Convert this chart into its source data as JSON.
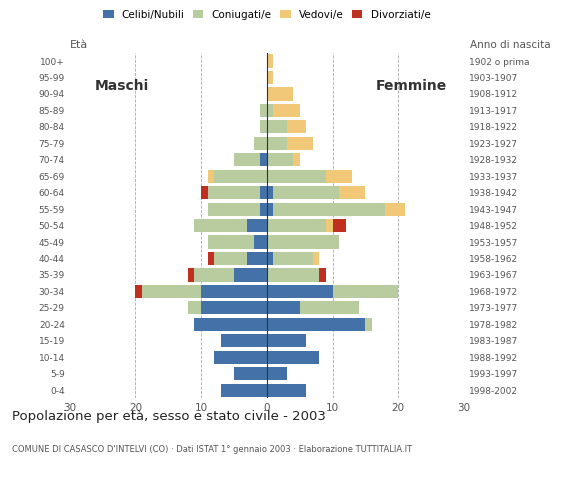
{
  "age_groups": [
    "0-4",
    "5-9",
    "10-14",
    "15-19",
    "20-24",
    "25-29",
    "30-34",
    "35-39",
    "40-44",
    "45-49",
    "50-54",
    "55-59",
    "60-64",
    "65-69",
    "70-74",
    "75-79",
    "80-84",
    "85-89",
    "90-94",
    "95-99",
    "100+"
  ],
  "birth_years": [
    "1998-2002",
    "1993-1997",
    "1988-1992",
    "1983-1987",
    "1978-1982",
    "1973-1977",
    "1968-1972",
    "1963-1967",
    "1958-1962",
    "1953-1957",
    "1948-1952",
    "1943-1947",
    "1938-1942",
    "1933-1937",
    "1928-1932",
    "1923-1927",
    "1918-1922",
    "1913-1917",
    "1908-1912",
    "1903-1907",
    "1902 o prima"
  ],
  "male": {
    "celibi": [
      7,
      5,
      8,
      7,
      11,
      10,
      10,
      5,
      3,
      2,
      3,
      1,
      1,
      0,
      1,
      0,
      0,
      0,
      0,
      0,
      0
    ],
    "coniugati": [
      0,
      0,
      0,
      0,
      0,
      2,
      9,
      6,
      5,
      7,
      8,
      8,
      8,
      8,
      4,
      2,
      1,
      1,
      0,
      0,
      0
    ],
    "vedovi": [
      0,
      0,
      0,
      0,
      0,
      0,
      0,
      0,
      0,
      0,
      0,
      0,
      0,
      1,
      0,
      0,
      0,
      0,
      0,
      0,
      0
    ],
    "divorziati": [
      0,
      0,
      0,
      0,
      0,
      0,
      1,
      1,
      1,
      0,
      0,
      0,
      1,
      0,
      0,
      0,
      0,
      0,
      0,
      0,
      0
    ]
  },
  "female": {
    "nubili": [
      6,
      3,
      8,
      6,
      15,
      5,
      10,
      0,
      1,
      0,
      0,
      1,
      1,
      0,
      0,
      0,
      0,
      0,
      0,
      0,
      0
    ],
    "coniugate": [
      0,
      0,
      0,
      0,
      1,
      9,
      10,
      8,
      6,
      11,
      9,
      17,
      10,
      9,
      4,
      3,
      3,
      1,
      0,
      0,
      0
    ],
    "vedove": [
      0,
      0,
      0,
      0,
      0,
      0,
      0,
      0,
      1,
      0,
      1,
      3,
      4,
      4,
      1,
      4,
      3,
      4,
      4,
      1,
      1
    ],
    "divorziate": [
      0,
      0,
      0,
      0,
      0,
      0,
      0,
      1,
      0,
      0,
      2,
      0,
      0,
      0,
      0,
      0,
      0,
      0,
      0,
      0,
      0
    ]
  },
  "colors": {
    "celibi": "#4472a8",
    "coniugati": "#b8cca0",
    "vedovi": "#f0c878",
    "divorziati": "#c03020"
  },
  "legend_labels": [
    "Celibi/Nubili",
    "Coniugati/e",
    "Vedovi/e",
    "Divorziati/e"
  ],
  "legend_colors": [
    "#4472a8",
    "#b8cca0",
    "#f0c878",
    "#c03020"
  ],
  "title": "Popolazione per età, sesso e stato civile - 2003",
  "subtitle": "COMUNE DI CASASCO D'INTELVI (CO) · Dati ISTAT 1° gennaio 2003 · Elaborazione TUTTITALIA.IT",
  "label_eta": "Età",
  "label_anno": "Anno di nascita",
  "label_maschi": "Maschi",
  "label_femmine": "Femmine",
  "xlim": 30,
  "background_color": "#ffffff",
  "grid_color": "#aaaaaa"
}
